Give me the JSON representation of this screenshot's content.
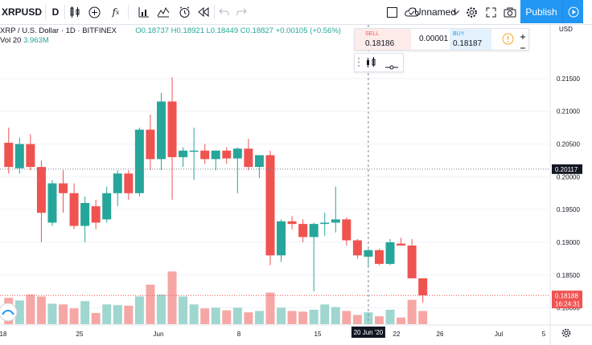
{
  "toolbar": {
    "symbol": "XRPUSD",
    "interval": "D",
    "layout_name": "Unnamed",
    "publish_label": "Publish"
  },
  "legend": {
    "title": "XRP / U.S. Dollar · 1D · BITFINEX",
    "open": "O0.18737",
    "high": "H0.18921",
    "low": "L0.18449",
    "close": "C0.18827",
    "change": "+0.00105 (+0.56%)",
    "volume_label": "Vol 20",
    "volume_value": "3.963M"
  },
  "trade": {
    "sell_label": "SELL",
    "sell_price": "0.18186",
    "spread": "0.00001",
    "buy_label": "BUY",
    "buy_price": "0.18187"
  },
  "colors": {
    "up": "#26a69a",
    "down": "#ef5350",
    "vol_up": "#9fd6d0",
    "vol_down": "#f6a7a5",
    "accent": "#2196f3"
  },
  "chart_data": {
    "type": "candlestick",
    "symbol": "XRPUSD",
    "exchange": "BITFINEX",
    "interval": "1D",
    "y_axis_ticks": [
      "0.21500",
      "0.21000",
      "0.20500",
      "0.20000",
      "0.19500",
      "0.19000",
      "0.18500",
      "0.18000"
    ],
    "x_axis_ticks": [
      "18",
      "25",
      "Jun",
      "8",
      "15",
      "22",
      "26",
      "Jul",
      "5"
    ],
    "ylim": [
      0.1775,
      0.2232
    ],
    "crosshair_price": "0.20117",
    "last_price": "0.18188",
    "countdown": "16:24:31",
    "crosshair_date": "20 Jun '20",
    "candles": [
      {
        "d": "May 18",
        "o": 0.2052,
        "h": 0.2075,
        "l": 0.2005,
        "c": 0.2015
      },
      {
        "d": "May 19",
        "o": 0.2013,
        "h": 0.206,
        "l": 0.2005,
        "c": 0.205
      },
      {
        "d": "May 20",
        "o": 0.205,
        "h": 0.2065,
        "l": 0.201,
        "c": 0.2015
      },
      {
        "d": "May 21",
        "o": 0.2015,
        "h": 0.2025,
        "l": 0.19,
        "c": 0.1945
      },
      {
        "d": "May 22",
        "o": 0.193,
        "h": 0.1995,
        "l": 0.1925,
        "c": 0.199
      },
      {
        "d": "May 23",
        "o": 0.199,
        "h": 0.201,
        "l": 0.1945,
        "c": 0.1975
      },
      {
        "d": "May 24",
        "o": 0.1975,
        "h": 0.199,
        "l": 0.192,
        "c": 0.1925
      },
      {
        "d": "May 25",
        "o": 0.1925,
        "h": 0.197,
        "l": 0.19,
        "c": 0.196
      },
      {
        "d": "May 26",
        "o": 0.1955,
        "h": 0.1965,
        "l": 0.192,
        "c": 0.193
      },
      {
        "d": "May 27",
        "o": 0.1935,
        "h": 0.1985,
        "l": 0.193,
        "c": 0.1975
      },
      {
        "d": "May 28",
        "o": 0.1975,
        "h": 0.201,
        "l": 0.1955,
        "c": 0.2005
      },
      {
        "d": "May 29",
        "o": 0.2005,
        "h": 0.201,
        "l": 0.1965,
        "c": 0.1975
      },
      {
        "d": "May 30",
        "o": 0.1975,
        "h": 0.2075,
        "l": 0.197,
        "c": 0.2072
      },
      {
        "d": "May 31",
        "o": 0.2072,
        "h": 0.2095,
        "l": 0.201,
        "c": 0.2027
      },
      {
        "d": "Jun 1",
        "o": 0.2027,
        "h": 0.2128,
        "l": 0.201,
        "c": 0.2115
      },
      {
        "d": "Jun 2",
        "o": 0.2115,
        "h": 0.2152,
        "l": 0.1965,
        "c": 0.203
      },
      {
        "d": "Jun 3",
        "o": 0.203,
        "h": 0.2045,
        "l": 0.2015,
        "c": 0.204
      },
      {
        "d": "Jun 4",
        "o": 0.204,
        "h": 0.2075,
        "l": 0.1995,
        "c": 0.204
      },
      {
        "d": "Jun 5",
        "o": 0.204,
        "h": 0.205,
        "l": 0.202,
        "c": 0.2027
      },
      {
        "d": "Jun 6",
        "o": 0.2027,
        "h": 0.204,
        "l": 0.201,
        "c": 0.204
      },
      {
        "d": "Jun 7",
        "o": 0.204,
        "h": 0.2045,
        "l": 0.202,
        "c": 0.2028
      },
      {
        "d": "Jun 8",
        "o": 0.2028,
        "h": 0.2045,
        "l": 0.1975,
        "c": 0.2043
      },
      {
        "d": "Jun 9",
        "o": 0.2043,
        "h": 0.2058,
        "l": 0.201,
        "c": 0.2015
      },
      {
        "d": "Jun 10",
        "o": 0.2015,
        "h": 0.2033,
        "l": 0.1998,
        "c": 0.2033
      },
      {
        "d": "Jun 11",
        "o": 0.2033,
        "h": 0.204,
        "l": 0.1865,
        "c": 0.188
      },
      {
        "d": "Jun 12",
        "o": 0.188,
        "h": 0.1935,
        "l": 0.187,
        "c": 0.1932
      },
      {
        "d": "Jun 13",
        "o": 0.1932,
        "h": 0.194,
        "l": 0.192,
        "c": 0.1928
      },
      {
        "d": "Jun 14",
        "o": 0.1928,
        "h": 0.1935,
        "l": 0.19,
        "c": 0.1908
      },
      {
        "d": "Jun 15",
        "o": 0.1908,
        "h": 0.193,
        "l": 0.1825,
        "c": 0.1928
      },
      {
        "d": "Jun 16",
        "o": 0.1928,
        "h": 0.1945,
        "l": 0.191,
        "c": 0.193
      },
      {
        "d": "Jun 17",
        "o": 0.193,
        "h": 0.1985,
        "l": 0.1915,
        "c": 0.1935
      },
      {
        "d": "Jun 18",
        "o": 0.1935,
        "h": 0.1938,
        "l": 0.1895,
        "c": 0.1903
      },
      {
        "d": "Jun 19",
        "o": 0.1903,
        "h": 0.1905,
        "l": 0.1875,
        "c": 0.188
      },
      {
        "d": "Jun 20",
        "o": 0.1878,
        "h": 0.189,
        "l": 0.1863,
        "c": 0.1888
      },
      {
        "d": "Jun 21",
        "o": 0.1888,
        "h": 0.189,
        "l": 0.1865,
        "c": 0.1867
      },
      {
        "d": "Jun 22",
        "o": 0.1867,
        "h": 0.1905,
        "l": 0.1865,
        "c": 0.19
      },
      {
        "d": "Jun 23",
        "o": 0.1898,
        "h": 0.1907,
        "l": 0.1895,
        "c": 0.1895
      },
      {
        "d": "Jun 24",
        "o": 0.1895,
        "h": 0.1905,
        "l": 0.1845,
        "c": 0.1845
      },
      {
        "d": "Jun 25",
        "o": 0.1845,
        "h": 0.1845,
        "l": 0.1808,
        "c": 0.1819
      }
    ],
    "volumes": [
      0.4,
      0.36,
      0.45,
      0.42,
      0.31,
      0.3,
      0.24,
      0.35,
      0.17,
      0.3,
      0.29,
      0.28,
      0.42,
      0.6,
      0.45,
      0.8,
      0.42,
      0.3,
      0.24,
      0.25,
      0.21,
      0.25,
      0.18,
      0.2,
      0.48,
      0.25,
      0.2,
      0.19,
      0.22,
      0.3,
      0.26,
      0.2,
      0.14,
      0.18,
      0.12,
      0.22,
      0.1,
      0.37,
      0.2
    ]
  }
}
